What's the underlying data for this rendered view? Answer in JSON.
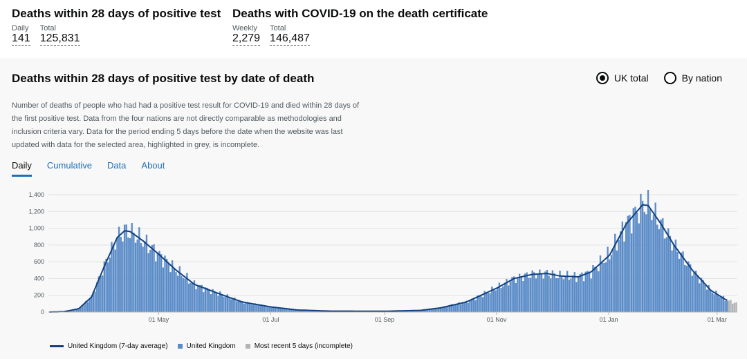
{
  "headline": {
    "left": {
      "title": "Deaths within 28 days of positive test",
      "metrics": [
        {
          "caption": "Daily",
          "value": "141"
        },
        {
          "caption": "Total",
          "value": "125,831"
        }
      ]
    },
    "right": {
      "title": "Deaths with COVID-19 on the death certificate",
      "metrics": [
        {
          "caption": "Weekly",
          "value": "2,279"
        },
        {
          "caption": "Total",
          "value": "146,487"
        }
      ]
    }
  },
  "card": {
    "title": "Deaths within 28 days of positive test by date of death",
    "radio": {
      "uk_total": "UK total",
      "by_nation": "By nation",
      "selected": "uk_total"
    },
    "description": "Number of deaths of people who had had a positive test result for COVID-19 and died within 28 days of the first positive test. Data from the four nations are not directly comparable as methodologies and inclusion criteria vary. Data for the period ending 5 days before the date when the website was last updated with data for the selected area, highlighted in grey, is incomplete.",
    "tabs": [
      {
        "label": "Daily",
        "active": true
      },
      {
        "label": "Cumulative",
        "active": false
      },
      {
        "label": "Data",
        "active": false
      },
      {
        "label": "About",
        "active": false
      }
    ]
  },
  "colors": {
    "bar": "#5b8cc8",
    "line": "#12407f",
    "incomplete": "#b1b4b6",
    "link": "#1d70b8"
  },
  "chart_data": {
    "type": "bar",
    "x_start": "2020-03-02",
    "xticks": [
      "01 May",
      "01 Jul",
      "01 Sep",
      "01 Nov",
      "01 Jan",
      "01 Mar"
    ],
    "ylim": [
      0,
      1400
    ],
    "yticks": [
      "0",
      "200",
      "400",
      "600",
      "800",
      "1,000",
      "1,200",
      "1,400"
    ],
    "keypoints_7day_avg": [
      [
        "2020-03-02",
        0
      ],
      [
        "2020-03-10",
        5
      ],
      [
        "2020-03-18",
        40
      ],
      [
        "2020-03-25",
        180
      ],
      [
        "2020-04-01",
        550
      ],
      [
        "2020-04-08",
        890
      ],
      [
        "2020-04-12",
        970
      ],
      [
        "2020-04-15",
        960
      ],
      [
        "2020-04-22",
        850
      ],
      [
        "2020-05-01",
        680
      ],
      [
        "2020-05-10",
        500
      ],
      [
        "2020-05-20",
        330
      ],
      [
        "2020-06-01",
        230
      ],
      [
        "2020-06-15",
        120
      ],
      [
        "2020-07-01",
        60
      ],
      [
        "2020-07-15",
        25
      ],
      [
        "2020-08-01",
        12
      ],
      [
        "2020-09-01",
        10
      ],
      [
        "2020-09-20",
        20
      ],
      [
        "2020-10-01",
        50
      ],
      [
        "2020-10-15",
        120
      ],
      [
        "2020-11-01",
        290
      ],
      [
        "2020-11-10",
        400
      ],
      [
        "2020-11-20",
        450
      ],
      [
        "2020-11-28",
        460
      ],
      [
        "2020-12-05",
        430
      ],
      [
        "2020-12-15",
        420
      ],
      [
        "2020-12-22",
        480
      ],
      [
        "2021-01-01",
        680
      ],
      [
        "2021-01-10",
        1050
      ],
      [
        "2021-01-19",
        1280
      ],
      [
        "2021-01-22",
        1270
      ],
      [
        "2021-01-29",
        1050
      ],
      [
        "2021-02-05",
        800
      ],
      [
        "2021-02-15",
        500
      ],
      [
        "2021-02-25",
        260
      ],
      [
        "2021-03-05",
        150
      ],
      [
        "2021-03-10",
        110
      ]
    ],
    "incomplete_days": 5,
    "legend": [
      {
        "label": "United Kingdom (7-day average)",
        "kind": "line"
      },
      {
        "label": "United Kingdom",
        "kind": "bar"
      },
      {
        "label": "Most recent 5 days (incomplete)",
        "kind": "incomplete"
      }
    ]
  }
}
